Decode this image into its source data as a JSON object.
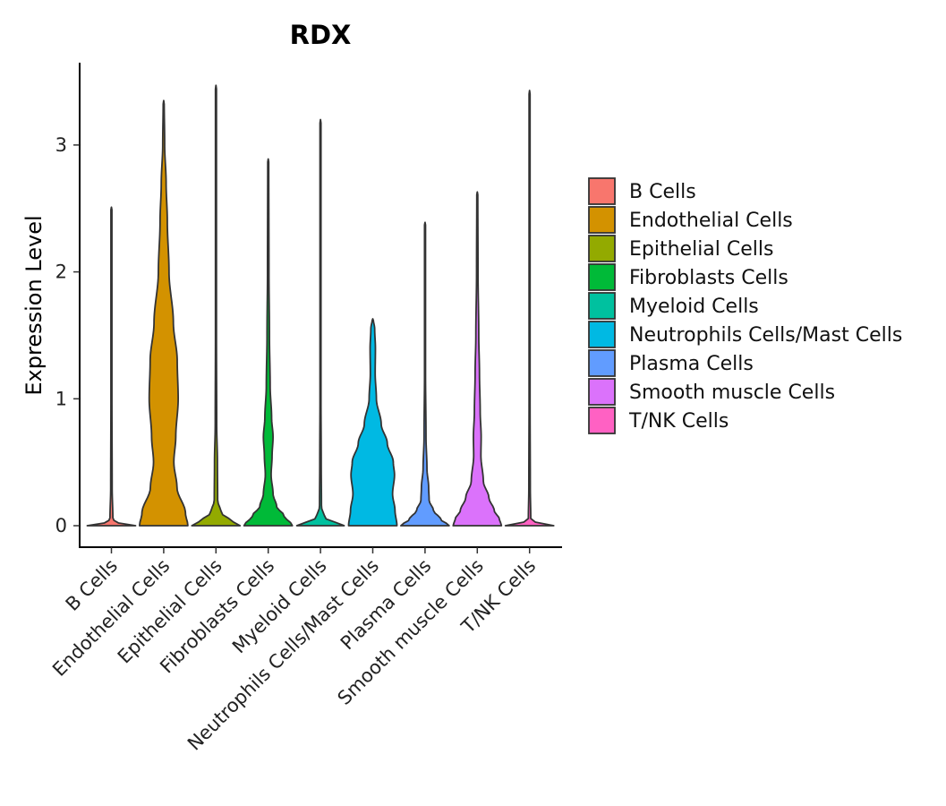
{
  "chart_data": {
    "type": "violin",
    "title": "RDX",
    "xlabel": "",
    "ylabel": "Expression Level",
    "ylim": [
      -0.17,
      3.65
    ],
    "yticks": [
      0,
      1,
      2,
      3
    ],
    "ytick_labels": [
      "0",
      "1",
      "2",
      "3"
    ],
    "grid": false,
    "legend_position": "right",
    "categories": [
      "B Cells",
      "Endothelial Cells",
      "Epithelial Cells",
      "Fibroblasts Cells",
      "Myeloid Cells",
      "Neutrophils Cells/Mast Cells",
      "Plasma Cells",
      "Smooth muscle Cells",
      "T/NK Cells"
    ],
    "series": [
      {
        "name": "B Cells",
        "color": "#F8766D",
        "max": 2.51,
        "density": [
          [
            0,
            1.0
          ],
          [
            0.02,
            0.3
          ],
          [
            0.05,
            0.06
          ],
          [
            0.3,
            0.03
          ],
          [
            1.0,
            0.02
          ],
          [
            2.51,
            0.02
          ]
        ]
      },
      {
        "name": "Endothelial Cells",
        "color": "#D39200",
        "max": 3.35,
        "density": [
          [
            0,
            1.0
          ],
          [
            0.1,
            0.9
          ],
          [
            0.3,
            0.55
          ],
          [
            0.5,
            0.42
          ],
          [
            0.7,
            0.5
          ],
          [
            1.0,
            0.6
          ],
          [
            1.3,
            0.56
          ],
          [
            1.6,
            0.4
          ],
          [
            2.0,
            0.22
          ],
          [
            2.4,
            0.15
          ],
          [
            2.7,
            0.1
          ],
          [
            3.0,
            0.04
          ],
          [
            3.35,
            0.02
          ]
        ]
      },
      {
        "name": "Epithelial Cells",
        "color": "#93AA00",
        "max": 3.47,
        "density": [
          [
            0,
            1.0
          ],
          [
            0.05,
            0.55
          ],
          [
            0.1,
            0.22
          ],
          [
            0.2,
            0.07
          ],
          [
            0.5,
            0.06
          ],
          [
            0.8,
            0.03
          ],
          [
            1.5,
            0.02
          ],
          [
            3.47,
            0.02
          ]
        ]
      },
      {
        "name": "Fibroblasts Cells",
        "color": "#00BA38",
        "max": 2.89,
        "density": [
          [
            0,
            1.0
          ],
          [
            0.08,
            0.65
          ],
          [
            0.15,
            0.35
          ],
          [
            0.25,
            0.2
          ],
          [
            0.4,
            0.12
          ],
          [
            0.55,
            0.16
          ],
          [
            0.7,
            0.2
          ],
          [
            0.85,
            0.14
          ],
          [
            1.1,
            0.08
          ],
          [
            1.5,
            0.05
          ],
          [
            2.0,
            0.03
          ],
          [
            2.89,
            0.02
          ]
        ]
      },
      {
        "name": "Myeloid Cells",
        "color": "#00C19F",
        "max": 3.2,
        "density": [
          [
            0,
            0.98
          ],
          [
            0.03,
            0.6
          ],
          [
            0.06,
            0.18
          ],
          [
            0.15,
            0.04
          ],
          [
            0.5,
            0.03
          ],
          [
            1.0,
            0.02
          ],
          [
            3.2,
            0.02
          ]
        ]
      },
      {
        "name": "Neutrophils Cells/Mast Cells",
        "color": "#00B9E3",
        "max": 1.63,
        "density": [
          [
            0,
            1.0
          ],
          [
            0.12,
            0.92
          ],
          [
            0.25,
            0.82
          ],
          [
            0.4,
            0.9
          ],
          [
            0.5,
            0.85
          ],
          [
            0.65,
            0.6
          ],
          [
            0.8,
            0.35
          ],
          [
            1.0,
            0.15
          ],
          [
            1.2,
            0.1
          ],
          [
            1.4,
            0.11
          ],
          [
            1.55,
            0.08
          ],
          [
            1.63,
            0.02
          ]
        ]
      },
      {
        "name": "Plasma Cells",
        "color": "#619CFF",
        "max": 2.39,
        "density": [
          [
            0,
            1.0
          ],
          [
            0.05,
            0.65
          ],
          [
            0.12,
            0.35
          ],
          [
            0.2,
            0.17
          ],
          [
            0.3,
            0.15
          ],
          [
            0.45,
            0.08
          ],
          [
            0.7,
            0.04
          ],
          [
            1.2,
            0.02
          ],
          [
            2.39,
            0.02
          ]
        ]
      },
      {
        "name": "Smooth muscle Cells",
        "color": "#DB72FB",
        "max": 2.63,
        "density": [
          [
            0,
            1.0
          ],
          [
            0.05,
            0.92
          ],
          [
            0.12,
            0.7
          ],
          [
            0.22,
            0.48
          ],
          [
            0.35,
            0.25
          ],
          [
            0.55,
            0.15
          ],
          [
            0.7,
            0.16
          ],
          [
            0.9,
            0.12
          ],
          [
            1.2,
            0.09
          ],
          [
            1.5,
            0.06
          ],
          [
            2.0,
            0.03
          ],
          [
            2.63,
            0.02
          ]
        ]
      },
      {
        "name": "T/NK Cells",
        "color": "#FF61C3",
        "max": 3.43,
        "density": [
          [
            0,
            1.0
          ],
          [
            0.02,
            0.28
          ],
          [
            0.05,
            0.05
          ],
          [
            0.3,
            0.03
          ],
          [
            1.0,
            0.02
          ],
          [
            3.43,
            0.02
          ]
        ]
      }
    ]
  }
}
